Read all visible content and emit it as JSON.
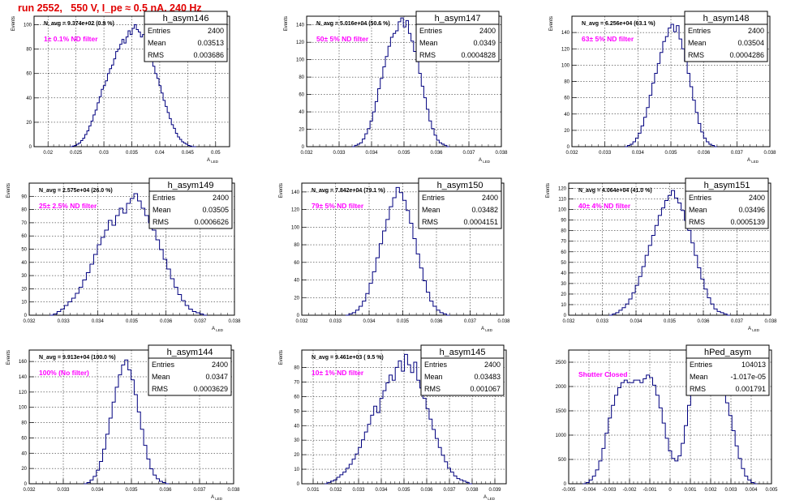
{
  "page": {
    "title": "run 2552,   550 V, I_pe ≈ 0.5 nA, 240 Hz",
    "accent_red": "#e00000",
    "annotation_magenta": "#ff00ff",
    "line_blue": "#00007f"
  },
  "chart_data": [
    {
      "type": "histogram",
      "name": "h_asym146",
      "navg": "N_avg = 9.374e+02 (0.9 %)",
      "label": "1± 0.1% ND filter",
      "entries": "2400",
      "mean": "0.03513",
      "rms": "0.003686",
      "xlabel": "A_LED",
      "ylabel": "Events",
      "xlim": [
        0.0175,
        0.0525
      ],
      "ylim": [
        0,
        107
      ],
      "xticks": [
        0.02,
        0.025,
        0.03,
        0.035,
        0.04,
        0.045,
        0.05
      ],
      "xtick_labels": [
        "0.02",
        "0.025",
        "0.03",
        "0.035",
        "0.04",
        "0.045",
        "0.05"
      ],
      "yticks": [
        0,
        20,
        40,
        60,
        80,
        100
      ],
      "peak_x": 0.0355,
      "peak_y": 100,
      "x_min": 0.024,
      "x_max": 0.0465,
      "profile": [
        0,
        0.005,
        0.01,
        0.02,
        0.03,
        0.05,
        0.07,
        0.1,
        0.13,
        0.17,
        0.21,
        0.26,
        0.3,
        0.36,
        0.41,
        0.47,
        0.5,
        0.54,
        0.6,
        0.64,
        0.67,
        0.72,
        0.78,
        0.8,
        0.84,
        0.88,
        0.85,
        0.9,
        0.95,
        0.92,
        0.97,
        1.0,
        0.96,
        0.94,
        0.9,
        0.92,
        0.86,
        0.8,
        0.76,
        0.72,
        0.66,
        0.6,
        0.56,
        0.5,
        0.44,
        0.38,
        0.33,
        0.28,
        0.23,
        0.18,
        0.15,
        0.11,
        0.08,
        0.06,
        0.04,
        0.03,
        0.02,
        0.01,
        0.005,
        0,
        0
      ]
    },
    {
      "type": "histogram",
      "name": "h_asym147",
      "navg": "N_avg = 5.016e+04 (50.6 %)",
      "label": "50± 5% ND filter",
      "entries": "2400",
      "mean": "0.0349",
      "rms": "0.0004828",
      "xlabel": "A_LED",
      "ylabel": "Events",
      "xlim": [
        0.032,
        0.038
      ],
      "ylim": [
        0,
        150
      ],
      "xticks": [
        0.032,
        0.033,
        0.034,
        0.035,
        0.036,
        0.037,
        0.038
      ],
      "xtick_labels": [
        "0.032",
        "0.033",
        "0.034",
        "0.035",
        "0.036",
        "0.037",
        "0.038"
      ],
      "yticks": [
        0,
        20,
        40,
        60,
        80,
        100,
        120,
        140
      ],
      "peak_x": 0.03495,
      "peak_y": 148,
      "x_min": 0.0334,
      "x_max": 0.0364,
      "profile": [
        0,
        0.01,
        0.02,
        0.03,
        0.06,
        0.1,
        0.14,
        0.2,
        0.27,
        0.35,
        0.45,
        0.53,
        0.62,
        0.7,
        0.78,
        0.85,
        0.88,
        0.9,
        0.97,
        1.0,
        0.93,
        0.98,
        0.88,
        0.82,
        0.74,
        0.66,
        0.57,
        0.47,
        0.38,
        0.29,
        0.2,
        0.14,
        0.09,
        0.05,
        0.03,
        0.02,
        0.01,
        0
      ]
    },
    {
      "type": "histogram",
      "name": "h_asym148",
      "navg": "N_avg = 6.256e+04 (63.1 %)",
      "label": "63± 5% ND filter",
      "entries": "2400",
      "mean": "0.03504",
      "rms": "0.0004286",
      "xlabel": "A_LED",
      "ylabel": "Events",
      "xlim": [
        0.032,
        0.038
      ],
      "ylim": [
        0,
        160
      ],
      "xticks": [
        0.032,
        0.033,
        0.034,
        0.035,
        0.036,
        0.037,
        0.038
      ],
      "xtick_labels": [
        "0.032",
        "0.033",
        "0.034",
        "0.035",
        "0.036",
        "0.037",
        "0.038"
      ],
      "yticks": [
        0,
        20,
        40,
        60,
        80,
        100,
        120,
        140
      ],
      "peak_x": 0.03505,
      "peak_y": 150,
      "x_min": 0.0336,
      "x_max": 0.0364,
      "profile": [
        0,
        0.01,
        0.02,
        0.04,
        0.07,
        0.11,
        0.17,
        0.24,
        0.32,
        0.42,
        0.52,
        0.6,
        0.68,
        0.77,
        0.86,
        0.9,
        0.97,
        1.0,
        0.94,
        0.99,
        0.88,
        0.8,
        0.7,
        0.6,
        0.49,
        0.38,
        0.28,
        0.19,
        0.12,
        0.07,
        0.04,
        0.02,
        0.01,
        0
      ]
    },
    {
      "type": "histogram",
      "name": "h_asym149",
      "navg": "N_avg = 2.575e+04 (26.0 %)",
      "label": "25± 2.5% ND filter",
      "entries": "2400",
      "mean": "0.03505",
      "rms": "0.0006626",
      "xlabel": "A_LED",
      "ylabel": "Events",
      "xlim": [
        0.032,
        0.038
      ],
      "ylim": [
        0,
        100
      ],
      "xticks": [
        0.032,
        0.033,
        0.034,
        0.035,
        0.036,
        0.037,
        0.038
      ],
      "xtick_labels": [
        "0.032",
        "0.033",
        "0.034",
        "0.035",
        "0.036",
        "0.037",
        "0.038"
      ],
      "yticks": [
        0,
        10,
        20,
        30,
        40,
        50,
        60,
        70,
        80,
        90
      ],
      "peak_x": 0.0352,
      "peak_y": 92,
      "x_min": 0.0326,
      "x_max": 0.0372,
      "profile": [
        0,
        0.01,
        0.03,
        0.05,
        0.08,
        0.11,
        0.14,
        0.18,
        0.23,
        0.29,
        0.35,
        0.42,
        0.5,
        0.58,
        0.64,
        0.7,
        0.78,
        0.74,
        0.82,
        0.88,
        0.84,
        0.92,
        0.96,
        1.0,
        0.94,
        0.88,
        0.82,
        0.76,
        0.7,
        0.62,
        0.54,
        0.46,
        0.38,
        0.3,
        0.23,
        0.17,
        0.12,
        0.08,
        0.05,
        0.03,
        0.02,
        0.01,
        0
      ]
    },
    {
      "type": "histogram",
      "name": "h_asym150",
      "navg": "N_avg = 7.842e+04 (79.1 %)",
      "label": "79± 5% ND filter",
      "entries": "2400",
      "mean": "0.03482",
      "rms": "0.0004151",
      "xlabel": "A_LED",
      "ylabel": "Events",
      "xlim": [
        0.032,
        0.038
      ],
      "ylim": [
        0,
        150
      ],
      "xticks": [
        0.032,
        0.033,
        0.034,
        0.035,
        0.036,
        0.037,
        0.038
      ],
      "xtick_labels": [
        "0.032",
        "0.033",
        "0.034",
        "0.035",
        "0.036",
        "0.037",
        "0.038"
      ],
      "yticks": [
        0,
        20,
        40,
        60,
        80,
        100,
        120,
        140
      ],
      "peak_x": 0.03485,
      "peak_y": 145,
      "x_min": 0.0333,
      "x_max": 0.0364,
      "profile": [
        0,
        0.01,
        0.02,
        0.04,
        0.07,
        0.11,
        0.17,
        0.25,
        0.34,
        0.45,
        0.56,
        0.66,
        0.75,
        0.85,
        0.92,
        1.0,
        0.96,
        0.9,
        0.82,
        0.72,
        0.6,
        0.48,
        0.37,
        0.27,
        0.18,
        0.11,
        0.07,
        0.04,
        0.02,
        0.01,
        0
      ]
    },
    {
      "type": "histogram",
      "name": "h_asym151",
      "navg": "N_avg = 4.064e+04 (41.0 %)",
      "label": "40± 4% ND filter",
      "entries": "2400",
      "mean": "0.03496",
      "rms": "0.0005139",
      "xlabel": "A_LED",
      "ylabel": "Events",
      "xlim": [
        0.032,
        0.038
      ],
      "ylim": [
        0,
        125
      ],
      "xticks": [
        0.032,
        0.033,
        0.034,
        0.035,
        0.036,
        0.037,
        0.038
      ],
      "xtick_labels": [
        "0.032",
        "0.033",
        "0.034",
        "0.035",
        "0.036",
        "0.037",
        "0.038"
      ],
      "yticks": [
        0,
        10,
        20,
        30,
        40,
        50,
        60,
        70,
        80,
        90,
        100,
        110,
        120
      ],
      "peak_x": 0.03495,
      "peak_y": 118,
      "x_min": 0.0332,
      "x_max": 0.0368,
      "profile": [
        0,
        0.01,
        0.02,
        0.04,
        0.06,
        0.09,
        0.13,
        0.18,
        0.24,
        0.31,
        0.39,
        0.48,
        0.56,
        0.64,
        0.72,
        0.8,
        0.86,
        0.92,
        0.96,
        1.0,
        0.94,
        0.9,
        0.84,
        0.76,
        0.68,
        0.58,
        0.48,
        0.38,
        0.29,
        0.21,
        0.14,
        0.09,
        0.05,
        0.03,
        0.02,
        0.01,
        0
      ]
    },
    {
      "type": "histogram",
      "name": "h_asym144",
      "navg": "N_avg = 9.913e+04 (100.0 %)",
      "label": "100% (No filter)",
      "entries": "2400",
      "mean": "0.0347",
      "rms": "0.0003629",
      "xlabel": "A_LED",
      "ylabel": "Events",
      "xlim": [
        0.032,
        0.038
      ],
      "ylim": [
        0,
        175
      ],
      "xticks": [
        0.032,
        0.033,
        0.034,
        0.035,
        0.036,
        0.037,
        0.038
      ],
      "xtick_labels": [
        "0.032",
        "0.033",
        "0.034",
        "0.035",
        "0.036",
        "0.037",
        "0.038"
      ],
      "yticks": [
        0,
        20,
        40,
        60,
        80,
        100,
        120,
        140,
        160
      ],
      "peak_x": 0.03475,
      "peak_y": 162,
      "x_min": 0.0336,
      "x_max": 0.0361,
      "profile": [
        0,
        0.01,
        0.03,
        0.06,
        0.11,
        0.18,
        0.28,
        0.4,
        0.53,
        0.66,
        0.78,
        0.88,
        0.96,
        1.0,
        0.92,
        0.84,
        0.72,
        0.58,
        0.44,
        0.31,
        0.2,
        0.12,
        0.07,
        0.04,
        0.02,
        0.01,
        0
      ]
    },
    {
      "type": "histogram",
      "name": "h_asym145",
      "navg": "N_avg = 9.461e+03 ( 9.5 %)",
      "label": "10± 1% ND filter",
      "entries": "2400",
      "mean": "0.03483",
      "rms": "0.001067",
      "xlabel": "A_LED",
      "ylabel": "Events",
      "xlim": [
        0.0305,
        0.0395
      ],
      "ylim": [
        0,
        92
      ],
      "xticks": [
        0.031,
        0.032,
        0.033,
        0.034,
        0.035,
        0.036,
        0.037,
        0.038,
        0.039
      ],
      "xtick_labels": [
        "0.031",
        "0.032",
        "0.033",
        "0.034",
        "0.035",
        "0.036",
        "0.037",
        "0.038",
        "0.039"
      ],
      "yticks": [
        0,
        10,
        20,
        30,
        40,
        50,
        60,
        70,
        80
      ],
      "peak_x": 0.0349,
      "peak_y": 89,
      "x_min": 0.0315,
      "x_max": 0.038,
      "profile": [
        0,
        0.01,
        0.02,
        0.03,
        0.05,
        0.07,
        0.09,
        0.12,
        0.15,
        0.19,
        0.23,
        0.28,
        0.34,
        0.4,
        0.46,
        0.53,
        0.6,
        0.55,
        0.66,
        0.72,
        0.78,
        0.84,
        0.8,
        0.9,
        0.95,
        0.87,
        1.0,
        0.92,
        0.86,
        0.94,
        0.8,
        0.74,
        0.66,
        0.58,
        0.5,
        0.42,
        0.35,
        0.28,
        0.22,
        0.17,
        0.12,
        0.09,
        0.06,
        0.04,
        0.03,
        0.02,
        0.01,
        0
      ]
    },
    {
      "type": "histogram",
      "name": "hPed_asym",
      "navg": "",
      "label": "Shutter Closed",
      "entries": "104013",
      "mean": "-1.017e-05",
      "rms": "0.001791",
      "xlabel": "",
      "ylabel": "",
      "xlim": [
        -0.005,
        0.005
      ],
      "ylim": [
        0,
        2750
      ],
      "xticks": [
        -0.005,
        -0.004,
        -0.003,
        -0.002,
        -0.001,
        0,
        0.001,
        0.002,
        0.003,
        0.004,
        0.005
      ],
      "xtick_labels": [
        "-0.005",
        "-0.004",
        "-0.003",
        "-0.002",
        "-0.001",
        "0",
        "0.001",
        "0.002",
        "0.003",
        "0.004",
        "0.005"
      ],
      "yticks": [
        0,
        500,
        1000,
        1500,
        2000,
        2500
      ],
      "peak_x": 0.001,
      "peak_y": 2600,
      "x_min": -0.0043,
      "x_max": 0.0043,
      "profile": [
        0,
        0.01,
        0.03,
        0.06,
        0.11,
        0.18,
        0.28,
        0.4,
        0.52,
        0.62,
        0.7,
        0.76,
        0.8,
        0.82,
        0.8,
        0.8,
        0.82,
        0.82,
        0.8,
        0.83,
        0.86,
        0.84,
        0.78,
        0.7,
        0.6,
        0.48,
        0.36,
        0.26,
        0.2,
        0.18,
        0.22,
        0.32,
        0.46,
        0.62,
        0.8,
        0.92,
        0.98,
        1.0,
        0.98,
        0.94,
        0.9,
        0.86,
        0.82,
        0.78,
        0.72,
        0.64,
        0.54,
        0.42,
        0.3,
        0.2,
        0.12,
        0.06,
        0.03,
        0.01,
        0
      ]
    }
  ]
}
